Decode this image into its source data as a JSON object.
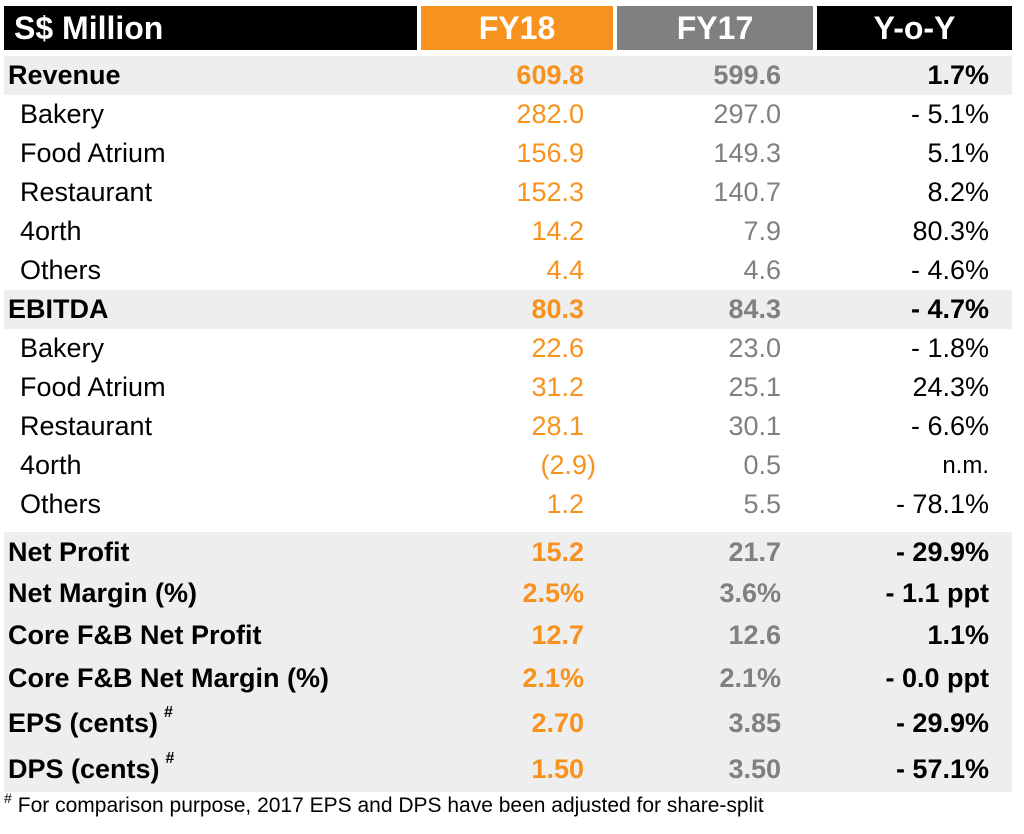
{
  "header": {
    "metric": "S$ Million",
    "fy18": "FY18",
    "fy17": "FY17",
    "yoy": "Y-o-Y"
  },
  "rows": [
    {
      "label": "Revenue",
      "fy18": "609.8",
      "fy17": "599.6",
      "yoy": "1.7%"
    },
    {
      "label": "Bakery",
      "fy18": "282.0",
      "fy17": "297.0",
      "yoy": "- 5.1%"
    },
    {
      "label": "Food Atrium",
      "fy18": "156.9",
      "fy17": "149.3",
      "yoy": "5.1%"
    },
    {
      "label": "Restaurant",
      "fy18": "152.3",
      "fy17": "140.7",
      "yoy": "8.2%"
    },
    {
      "label": "4orth",
      "fy18": "14.2",
      "fy17": "7.9",
      "yoy": "80.3%"
    },
    {
      "label": "Others",
      "fy18": "4.4",
      "fy17": "4.6",
      "yoy": "- 4.6%"
    },
    {
      "label": "EBITDA",
      "fy18": "80.3",
      "fy17": "84.3",
      "yoy": "- 4.7%"
    },
    {
      "label": "Bakery",
      "fy18": "22.6",
      "fy17": "23.0",
      "yoy": "- 1.8%"
    },
    {
      "label": "Food Atrium",
      "fy18": "31.2",
      "fy17": "25.1",
      "yoy": "24.3%"
    },
    {
      "label": "Restaurant",
      "fy18": "28.1",
      "fy17": "30.1",
      "yoy": "- 6.6%"
    },
    {
      "label": "4orth",
      "fy18": "(2.9)",
      "fy17": "0.5",
      "yoy": "n.m."
    },
    {
      "label": "Others",
      "fy18": "1.2",
      "fy17": "5.5",
      "yoy": "- 78.1%"
    },
    {
      "label": "Net Profit",
      "fy18": "15.2",
      "fy17": "21.7",
      "yoy": "- 29.9%"
    },
    {
      "label": "Net Margin (%)",
      "fy18": "2.5%",
      "fy17": "3.6%",
      "yoy": "- 1.1 ppt"
    },
    {
      "label": "Core F&B Net Profit",
      "fy18": "12.7",
      "fy17": "12.6",
      "yoy": "1.1%"
    },
    {
      "label": "Core F&B Net Margin (%)",
      "fy18": "2.1%",
      "fy17": "2.1%",
      "yoy": "- 0.0 ppt"
    },
    {
      "label": "EPS (cents)",
      "marker": "#",
      "fy18": "2.70",
      "fy17": "3.85",
      "yoy": "- 29.9%"
    },
    {
      "label": "DPS (cents)",
      "marker": "#",
      "fy18": "1.50",
      "fy17": "3.50",
      "yoy": "- 57.1%"
    }
  ],
  "footnote": {
    "marker": "#",
    "text": "For comparison purpose, 2017 EPS and DPS have been adjusted for share-split"
  },
  "colors": {
    "fy18": "#f7921e",
    "fy17": "#808080",
    "header_dark": "#000000",
    "row_shading": "#eeeeee"
  }
}
